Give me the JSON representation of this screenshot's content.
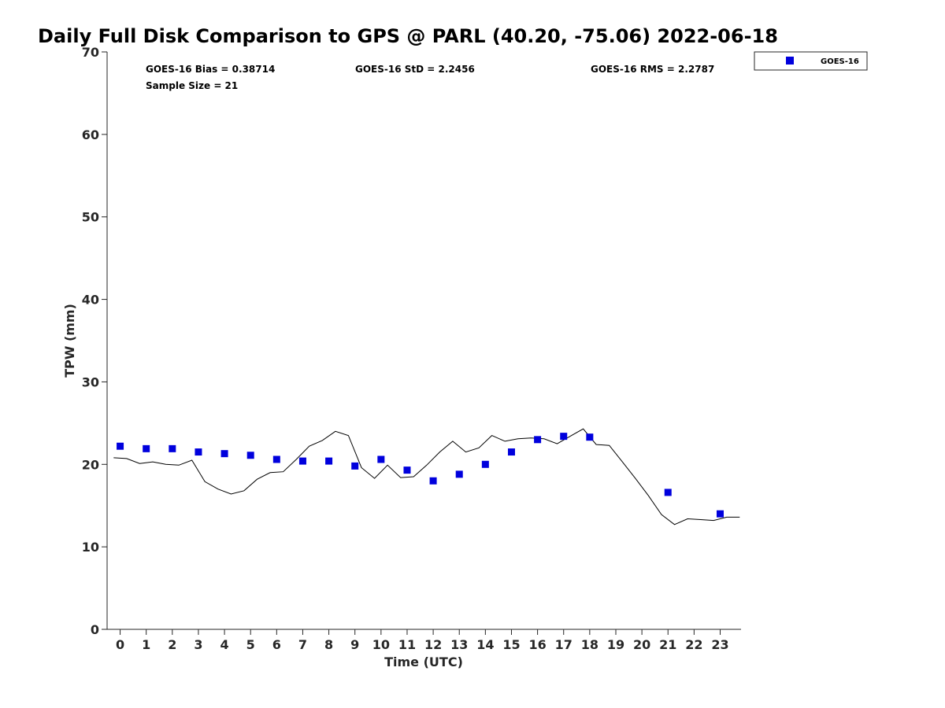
{
  "chart_data": {
    "type": "scatter",
    "title": "Daily Full Disk Comparison to GPS @ PARL (40.20, -75.06) 2022-06-18",
    "xlabel": "Time (UTC)",
    "ylabel": "TPW (mm)",
    "xlim": [
      -0.5,
      23.8
    ],
    "ylim": [
      0,
      70
    ],
    "x_ticks": [
      0,
      1,
      2,
      3,
      4,
      5,
      6,
      7,
      8,
      9,
      10,
      11,
      12,
      13,
      14,
      15,
      16,
      17,
      18,
      19,
      20,
      21,
      22,
      23
    ],
    "y_ticks": [
      0,
      10,
      20,
      30,
      40,
      50,
      60,
      70
    ],
    "legend_position": "top-right (outside plot)",
    "grid": false,
    "stats": {
      "bias": "GOES-16 Bias = 0.38714",
      "std": "GOES-16 StD = 2.2456",
      "rms": "GOES-16 RMS = 2.2787",
      "sample_size": "Sample Size = 21"
    },
    "series": [
      {
        "name": "GOES-16",
        "kind": "markers",
        "color": "#0000dd",
        "x": [
          0,
          1,
          2,
          3,
          4,
          5,
          6,
          7,
          8,
          9,
          10,
          11,
          12,
          13,
          14,
          15,
          16,
          17,
          18,
          21,
          23
        ],
        "y": [
          22.2,
          21.9,
          21.9,
          21.5,
          21.3,
          21.1,
          20.6,
          20.4,
          20.4,
          19.8,
          20.6,
          19.3,
          18.0,
          18.8,
          20.0,
          21.5,
          23.0,
          23.4,
          23.3,
          16.6,
          14.0
        ]
      },
      {
        "kind": "line",
        "color": "#000000",
        "x": [
          -0.25,
          0.25,
          0.75,
          1.25,
          1.75,
          2.25,
          2.75,
          3.25,
          3.75,
          4.25,
          4.75,
          5.25,
          5.75,
          6.25,
          6.75,
          7.25,
          7.75,
          8.25,
          8.75,
          9.25,
          9.75,
          10.25,
          10.75,
          11.25,
          11.75,
          12.25,
          12.75,
          13.25,
          13.75,
          14.25,
          14.75,
          15.25,
          15.75,
          16.25,
          16.75,
          17.25,
          17.75,
          18.25,
          18.75,
          19.25,
          19.75,
          20.25,
          20.75,
          21.25,
          21.75,
          22.25,
          22.75,
          23.25,
          23.75
        ],
        "y": [
          20.8,
          20.7,
          20.1,
          20.3,
          20.0,
          19.9,
          20.5,
          17.9,
          17.0,
          16.4,
          16.8,
          18.2,
          19.0,
          19.1,
          20.6,
          22.2,
          22.9,
          24.0,
          23.5,
          19.6,
          18.3,
          19.9,
          18.4,
          18.5,
          19.9,
          21.5,
          22.8,
          21.5,
          22.0,
          23.5,
          22.8,
          23.1,
          23.2,
          23.1,
          22.5,
          23.4,
          24.3,
          22.4,
          22.3,
          20.3,
          18.3,
          16.2,
          13.9,
          12.7,
          13.4,
          13.3,
          13.2,
          13.6,
          13.6
        ]
      }
    ]
  }
}
